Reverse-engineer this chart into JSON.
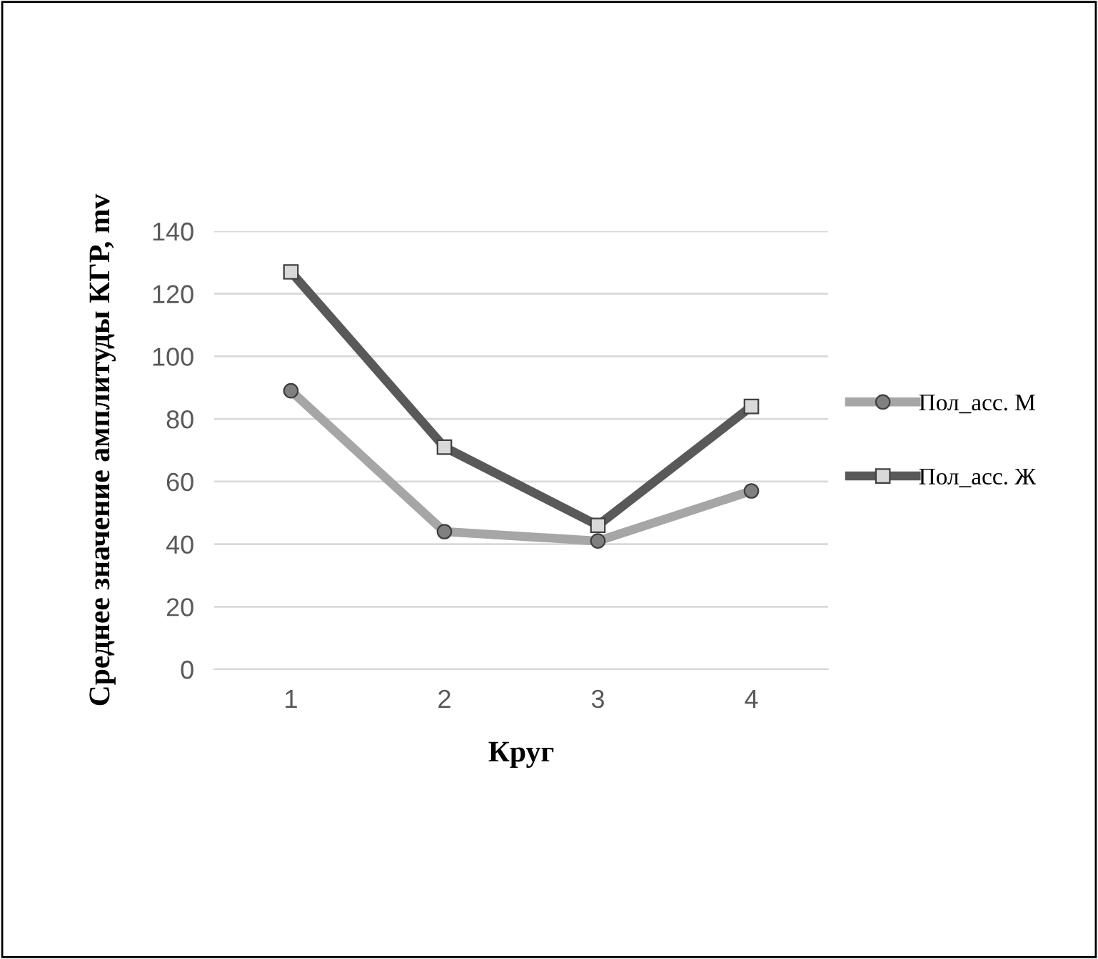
{
  "chart_data": {
    "type": "line",
    "xlabel": "Круг",
    "ylabel": "Среднее значение амплитуды КГР, mv",
    "categories": [
      "1",
      "2",
      "3",
      "4"
    ],
    "series": [
      {
        "name": "Пол_асс. М",
        "color": "#a6a6a6",
        "marker": "circle",
        "values": [
          89,
          44,
          41,
          57
        ]
      },
      {
        "name": "Пол_асс. Ж",
        "color": "#595959",
        "marker": "square",
        "values": [
          127,
          71,
          46,
          84
        ]
      }
    ],
    "ylim": [
      0,
      140
    ],
    "yticks": [
      0,
      20,
      40,
      60,
      80,
      100,
      120,
      140
    ],
    "grid": "y",
    "legend": "right",
    "line_style": "solid"
  }
}
